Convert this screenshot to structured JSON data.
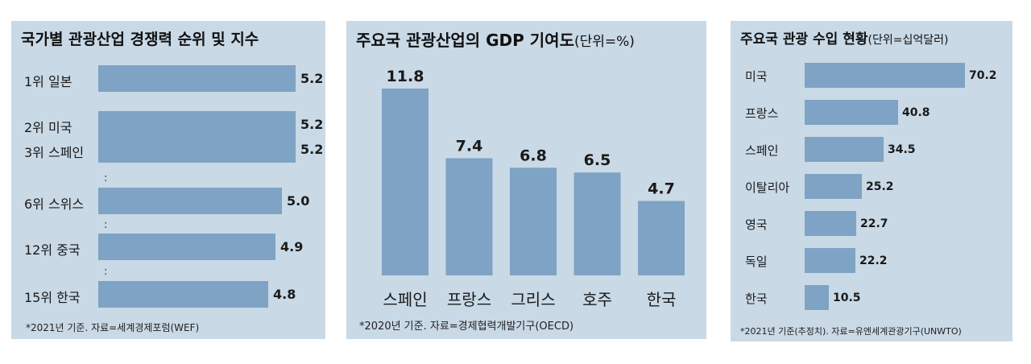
{
  "panels": {
    "competitiveness": {
      "title": "국가별 관광산업 경쟁력 순위 및 지수",
      "footnote": "*2021년 기준. 자료=세계경제포럼(WEF)",
      "ellipsis": ":"
    },
    "gdp": {
      "title": "주요국 관광산업의 GDP 기여도",
      "unit": "(단위=%)",
      "footnote": "*2020년 기준. 자료=경제협력개발기구(OECD)"
    },
    "revenue": {
      "title": "주요국 관광 수입 현황",
      "unit": "(단위=십억달러)",
      "footnote": "*2021년 기준(추정치). 자료=유엔세계관광기구(UNWTO)"
    }
  },
  "chart_data": [
    {
      "type": "bar",
      "orientation": "horizontal",
      "title": "국가별 관광산업 경쟁력 순위 및 지수",
      "categories": [
        "1위 일본",
        "2위 미국",
        "3위 스페인",
        "6위 스위스",
        "12위 중국",
        "15위 한국"
      ],
      "values": [
        5.2,
        5.2,
        5.2,
        5.0,
        4.9,
        4.8
      ],
      "labels": [
        "5.2",
        "5.2",
        "5.2",
        "5.0",
        "4.9",
        "4.8"
      ],
      "gaps_after": [
        2,
        3,
        4
      ],
      "color": "#7ea3c4"
    },
    {
      "type": "bar",
      "orientation": "vertical",
      "title": "주요국 관광산업의 GDP 기여도",
      "categories": [
        "스페인",
        "프랑스",
        "그리스",
        "호주",
        "한국"
      ],
      "values": [
        11.8,
        7.4,
        6.8,
        6.5,
        4.7
      ],
      "labels": [
        "11.8",
        "7.4",
        "6.8",
        "6.5",
        "4.7"
      ],
      "color": "#7ea3c4"
    },
    {
      "type": "bar",
      "orientation": "horizontal",
      "title": "주요국 관광 수입 현황",
      "categories": [
        "미국",
        "프랑스",
        "스페인",
        "이탈리아",
        "영국",
        "독일",
        "한국"
      ],
      "values": [
        70.2,
        40.8,
        34.5,
        25.2,
        22.7,
        22.2,
        10.5
      ],
      "labels": [
        "70.2",
        "40.8",
        "34.5",
        "25.2",
        "22.7",
        "22.2",
        "10.5"
      ],
      "color": "#7ea3c4"
    }
  ]
}
